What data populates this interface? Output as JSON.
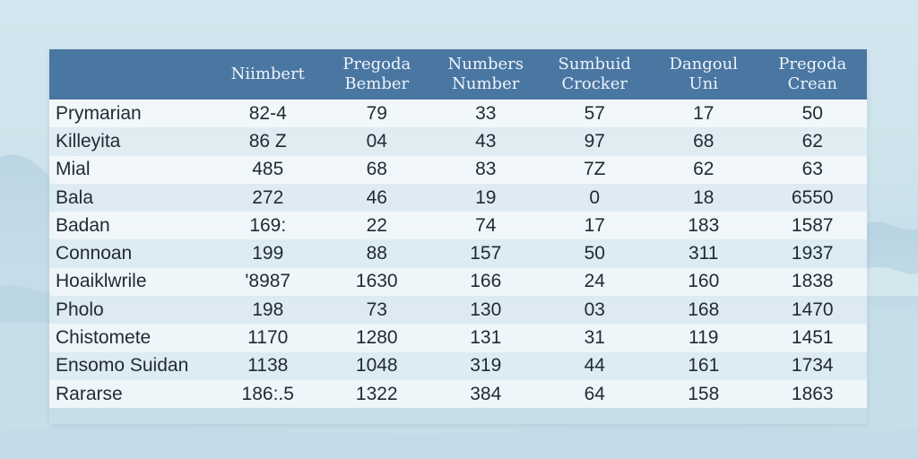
{
  "colors": {
    "header_bg": "#4a76a2",
    "header_text": "#eef4f9",
    "row_light": "#f6fafc",
    "row_tint": "#e2eef4",
    "body_text": "#1f2a33",
    "background": "#cfe3ec"
  },
  "table": {
    "headers": [
      "",
      "Niimbert",
      "Pregoda\nBember",
      "Numbers\nNumber",
      "Sumbuid\nCrocker",
      "Dangoul\nUni",
      "Pregoda\nCrean"
    ],
    "rows": [
      [
        "Prymarian",
        "82-4",
        "79",
        "33",
        "57",
        "17",
        "50"
      ],
      [
        "Killeyita",
        "86 Z",
        "04",
        "43",
        "97",
        "68",
        "62"
      ],
      [
        "Mial",
        "485",
        "68",
        "83",
        "7Z",
        "62",
        "63"
      ],
      [
        "Bala",
        "272",
        "46",
        "19",
        "0",
        "18",
        "6550"
      ],
      [
        "Badan",
        "169:",
        "22",
        "74",
        "17",
        "183",
        "1587"
      ],
      [
        "Connoan",
        "199",
        "88",
        "157",
        "50",
        "311",
        "1937"
      ],
      [
        "Hoaiklwrile",
        "'8987",
        "1630",
        "166",
        "24",
        "160",
        "1838"
      ],
      [
        "Pholo",
        "198",
        "73",
        "130",
        "03",
        "168",
        "1470"
      ],
      [
        "Chistomete",
        "1170",
        "1280",
        "131",
        "31",
        "119",
        "1451"
      ],
      [
        "Ensomo Suidan",
        "1138",
        "1048",
        "319",
        "44",
        "161",
        "1734"
      ],
      [
        "Rararse",
        "186:.5",
        "1322",
        "384",
        "64",
        "158",
        "1863"
      ]
    ]
  }
}
